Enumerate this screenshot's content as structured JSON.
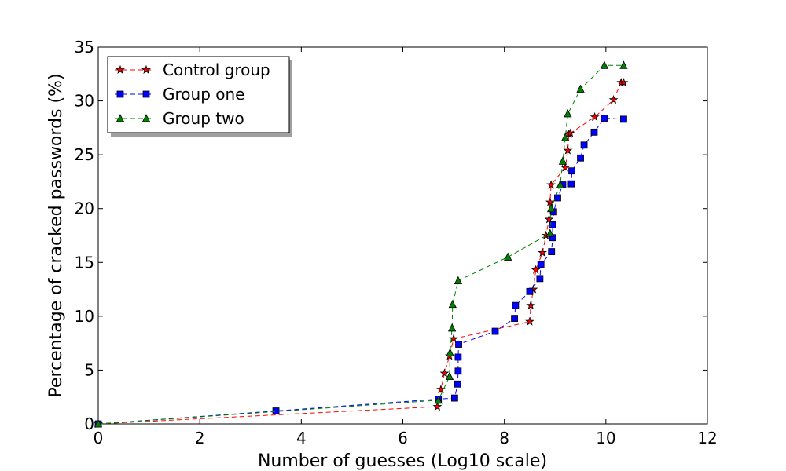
{
  "chart_data": {
    "type": "line",
    "title": "",
    "xlabel": "Number of guesses (Log10 scale)",
    "ylabel": "Percentage of cracked passwords (%)",
    "xlim": [
      0,
      12
    ],
    "ylim": [
      0,
      35
    ],
    "xticks": [
      0,
      2,
      4,
      6,
      8,
      10,
      12
    ],
    "yticks": [
      0,
      5,
      10,
      15,
      20,
      25,
      30,
      35
    ],
    "grid": false,
    "legend": "top-left",
    "series": [
      {
        "name": "Control group",
        "color": "#ff0000",
        "marker": "star",
        "x": [
          0,
          6.68,
          6.75,
          6.82,
          6.92,
          7.0,
          8.5,
          8.52,
          8.57,
          8.62,
          8.75,
          8.82,
          8.88,
          8.9,
          8.92,
          9.2,
          9.25,
          9.27,
          9.3,
          9.78,
          10.15,
          10.3,
          10.35
        ],
        "y": [
          0,
          1.6,
          3.2,
          4.7,
          6.3,
          7.9,
          9.5,
          11.0,
          12.5,
          14.3,
          15.9,
          17.5,
          19.0,
          20.6,
          22.2,
          23.8,
          25.4,
          26.9,
          27.0,
          28.5,
          30.1,
          31.7,
          31.7
        ]
      },
      {
        "name": "Group one",
        "color": "#0000ff",
        "marker": "square",
        "x": [
          0,
          3.5,
          6.7,
          7.02,
          7.08,
          7.09,
          7.09,
          7.1,
          7.82,
          8.2,
          8.22,
          8.5,
          8.7,
          8.72,
          8.93,
          8.95,
          8.95,
          8.97,
          9.05,
          9.15,
          9.32,
          9.33,
          9.5,
          9.57,
          9.77,
          9.97,
          10.35
        ],
        "y": [
          0,
          1.2,
          2.3,
          2.4,
          3.7,
          4.9,
          6.2,
          7.4,
          8.6,
          9.8,
          11.0,
          12.3,
          13.5,
          14.8,
          16.0,
          17.3,
          18.5,
          19.7,
          21.0,
          22.2,
          22.3,
          23.5,
          24.7,
          25.9,
          27.1,
          28.4,
          28.3
        ]
      },
      {
        "name": "Group two",
        "color": "#008000",
        "marker": "triangle",
        "x": [
          0,
          6.7,
          6.92,
          6.93,
          6.97,
          6.98,
          7.09,
          8.07,
          8.9,
          8.92,
          9.1,
          9.15,
          9.2,
          9.25,
          9.5,
          9.97,
          10.35
        ],
        "y": [
          0,
          2.2,
          4.4,
          6.6,
          8.9,
          11.1,
          13.3,
          15.5,
          17.7,
          20.0,
          22.2,
          24.4,
          26.6,
          28.8,
          31.1,
          33.3,
          33.3
        ]
      }
    ]
  }
}
